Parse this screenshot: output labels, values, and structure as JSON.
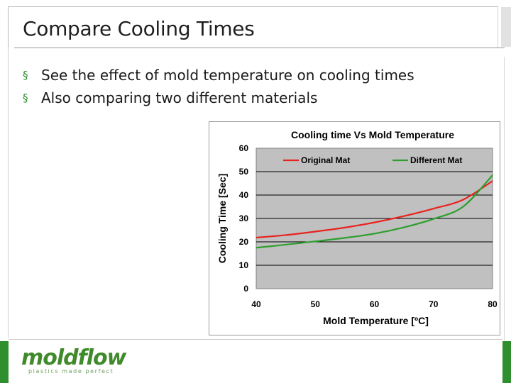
{
  "slide": {
    "title": "Compare Cooling Times",
    "bullets": [
      "See the effect of mold temperature on cooling times",
      "Also comparing two different materials"
    ],
    "accent_color": "#2f8f2f"
  },
  "logo": {
    "word": "moldflow",
    "tagline": "plastics made perfect",
    "color": "#3f8a2a"
  },
  "chart_data": {
    "type": "line",
    "title": "Cooling time Vs Mold Temperature",
    "xlabel": "Mold Temperature [ºC]",
    "ylabel": "Cooling Time [Sec]",
    "xlim": [
      40,
      80
    ],
    "ylim": [
      0,
      60
    ],
    "x_ticks": [
      "40",
      "50",
      "60",
      "70",
      "80"
    ],
    "y_ticks": [
      "0",
      "10",
      "20",
      "30",
      "40",
      "50",
      "60"
    ],
    "grid": "horizontal",
    "plot_background": "#c0c0c0",
    "legend_position": "top",
    "series": [
      {
        "name": "Original Mat",
        "color": "#e8231f",
        "x": [
          40,
          45,
          50,
          55,
          60,
          65,
          70,
          75,
          80
        ],
        "values": [
          21.8,
          22.9,
          24.4,
          26.1,
          28.3,
          31.0,
          34.2,
          38.0,
          46.0
        ]
      },
      {
        "name": "Different Mat",
        "color": "#2e9e2e",
        "x": [
          40,
          45,
          50,
          55,
          60,
          65,
          70,
          75,
          80
        ],
        "values": [
          17.5,
          18.8,
          20.2,
          21.7,
          23.5,
          26.2,
          29.8,
          35.0,
          48.5
        ]
      }
    ]
  }
}
